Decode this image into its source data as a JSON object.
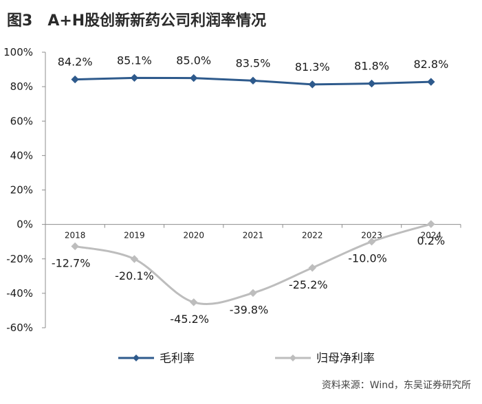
{
  "header": {
    "figure_label": "图3",
    "title": "A+H股创新新药公司利润率情况"
  },
  "source": "资料来源：Wind，东吴证券研究所",
  "colors": {
    "gross": "#2e5a8c",
    "net": "#bdbdbd",
    "axis": "#8c8c8c"
  },
  "chart_data": {
    "type": "line",
    "categories": [
      "2018",
      "2019",
      "2020",
      "2021",
      "2022",
      "2023",
      "2024"
    ],
    "series": [
      {
        "name": "毛利率",
        "values": [
          84.2,
          85.1,
          85.0,
          83.5,
          81.3,
          81.8,
          82.8
        ],
        "labels": [
          "84.2%",
          "85.1%",
          "85.0%",
          "83.5%",
          "81.3%",
          "81.8%",
          "82.8%"
        ],
        "color": "#2e5a8c",
        "marker": "diamond"
      },
      {
        "name": "归母净利率",
        "values": [
          -12.7,
          -20.1,
          -45.2,
          -39.8,
          -25.2,
          -10.0,
          0.2
        ],
        "labels": [
          "-12.7%",
          "-20.1%",
          "-45.2%",
          "-39.8%",
          "-25.2%",
          "-10.0%",
          "0.2%"
        ],
        "color": "#bdbdbd",
        "marker": "diamond",
        "smooth": true
      }
    ],
    "y_ticks": [
      "100%",
      "80%",
      "60%",
      "40%",
      "20%",
      "0%",
      "-20%",
      "-40%",
      "-60%"
    ],
    "ylim": [
      -60,
      100
    ],
    "grid": false,
    "legend_position": "bottom"
  }
}
